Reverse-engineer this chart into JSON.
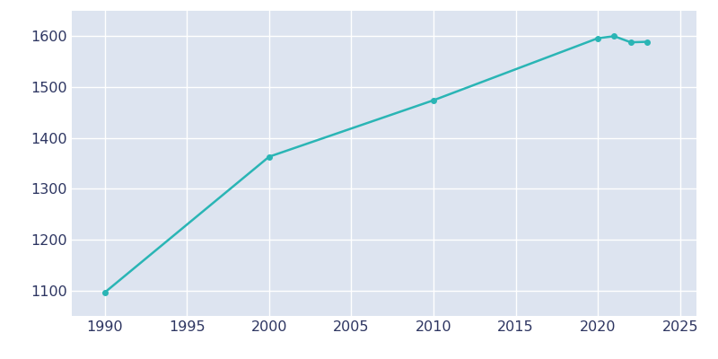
{
  "years": [
    1990,
    2000,
    2010,
    2020,
    2021,
    2022,
    2023
  ],
  "population": [
    1096,
    1363,
    1474,
    1596,
    1600,
    1588,
    1589
  ],
  "line_color": "#2ab5b5",
  "marker": "o",
  "marker_size": 4,
  "line_width": 1.8,
  "plot_bg_color": "#dde4f0",
  "fig_bg_color": "#ffffff",
  "grid_color": "#ffffff",
  "xlim": [
    1988,
    2026
  ],
  "ylim": [
    1050,
    1650
  ],
  "xticks": [
    1990,
    1995,
    2000,
    2005,
    2010,
    2015,
    2020,
    2025
  ],
  "yticks": [
    1100,
    1200,
    1300,
    1400,
    1500,
    1600
  ],
  "tick_label_color": "#2d3561",
  "tick_fontsize": 11.5
}
